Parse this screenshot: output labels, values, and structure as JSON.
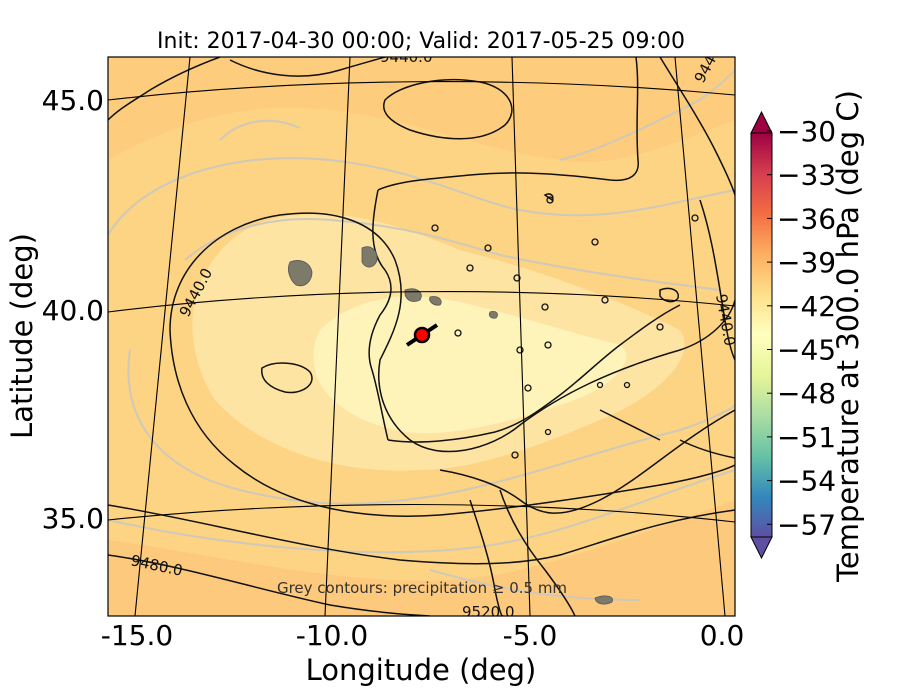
{
  "figure": {
    "title": "Init: 2017-04-30 00:00; Valid: 2017-05-25 09:00",
    "xlabel": "Longitude (deg)",
    "ylabel": "Latitude (deg)",
    "annotation": "Grey contours: precipitation ≥ 0.5 mm"
  },
  "axes": {
    "x_ticks": [
      "-15.0",
      "-10.0",
      "-5.0",
      "0.0"
    ],
    "y_ticks": [
      "45.0",
      "40.0",
      "35.0"
    ],
    "xlim": [
      -16.0,
      0.0
    ],
    "ylim": [
      32.7,
      46.0
    ]
  },
  "colorbar": {
    "label": "Temperature at 300.0 hPa (deg C)",
    "tick_labels": [
      "−30",
      "−33",
      "−36",
      "−39",
      "−42",
      "−45",
      "−48",
      "−51",
      "−54",
      "−57"
    ],
    "range": [
      -58.5,
      -29.5
    ],
    "extend": "both",
    "colors": [
      "#5e4fa2",
      "#3288bd",
      "#66c2a5",
      "#abdda4",
      "#e6f598",
      "#ffffbf",
      "#fee08b",
      "#fdae61",
      "#f46d43",
      "#d53e4f",
      "#9e0142"
    ]
  },
  "contours": {
    "geopotential_labels": [
      "9440.0",
      "9440.0",
      "9440.0",
      "9480.0",
      "9520.0",
      "944"
    ]
  },
  "marker": {
    "color": "#ff0000",
    "lon": -7.7,
    "lat": 39.3
  }
}
